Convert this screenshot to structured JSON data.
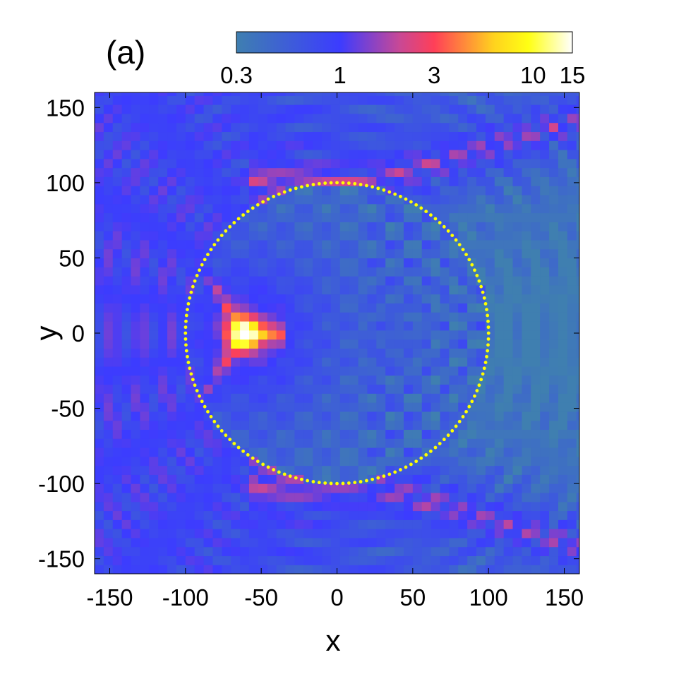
{
  "chart_data": {
    "type": "heatmap",
    "panel_label": "(a)",
    "xlabel": "x",
    "ylabel": "y",
    "xlim": [
      -160,
      160
    ],
    "ylim": [
      -160,
      160
    ],
    "x_ticks": [
      -150,
      -100,
      -50,
      0,
      50,
      100,
      150
    ],
    "y_ticks": [
      150,
      100,
      50,
      0,
      -50,
      -100,
      -150
    ],
    "x_tick_labels": [
      "-150",
      "-100",
      "-50",
      "0",
      "50",
      "100",
      "150"
    ],
    "y_tick_labels": [
      "150",
      "100",
      "50",
      "0",
      "-50",
      "-100",
      "-150"
    ],
    "colorbar": {
      "scale": "log",
      "range": [
        0.3,
        15
      ],
      "ticks": [
        0.3,
        1,
        3,
        10,
        15
      ],
      "tick_labels": [
        "0.3",
        "1",
        "3",
        "10",
        "15"
      ],
      "colormap": [
        {
          "value": 0.3,
          "color": "#3f7fb0"
        },
        {
          "value": 1,
          "color": "#3c3cff"
        },
        {
          "value": 2,
          "color": "#c84896"
        },
        {
          "value": 3,
          "color": "#ff3f58"
        },
        {
          "value": 6,
          "color": "#ffd21e"
        },
        {
          "value": 9,
          "color": "#ffff14"
        },
        {
          "value": 15,
          "color": "#ffffff"
        }
      ]
    },
    "overlay_circle": {
      "center": [
        0,
        0
      ],
      "radius": 100,
      "style": "dotted",
      "color": "#ffff00"
    },
    "caustic_peak": {
      "x": -62,
      "y": 0,
      "max_value": 15
    },
    "background_level_left": 1,
    "background_level_right": 0.3,
    "grid": false
  }
}
